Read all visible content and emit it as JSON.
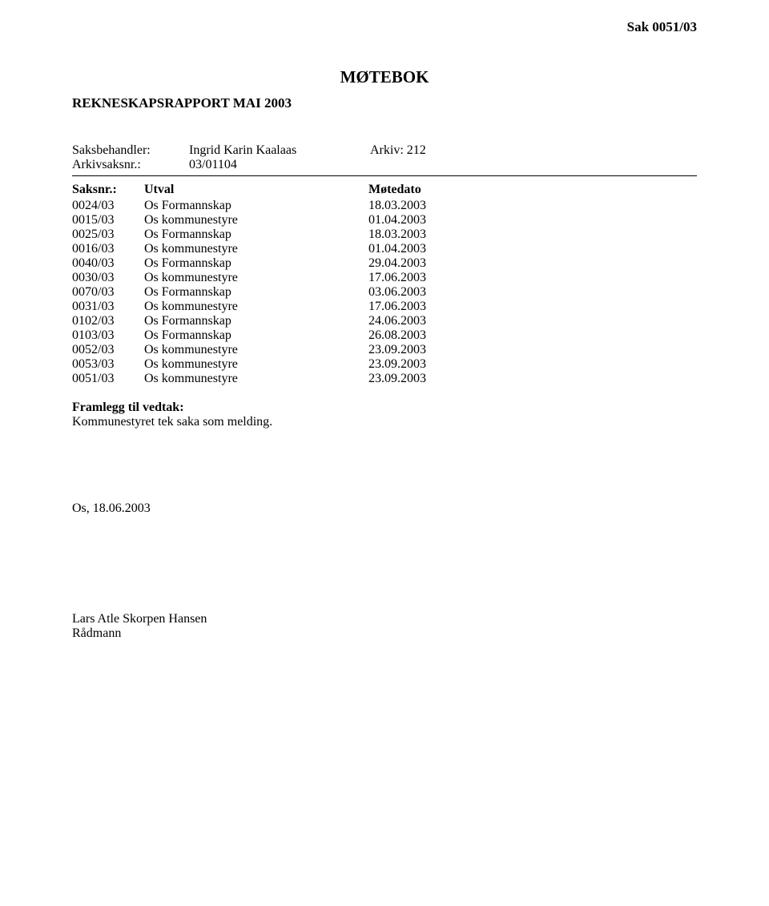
{
  "topRight": "Sak  0051/03",
  "docTitle": "MØTEBOK",
  "reportTitle": "REKNESKAPSRAPPORT MAI 2003",
  "meta": {
    "handlerLabel": "Saksbehandler:",
    "handlerName": "Ingrid Karin Kaalaas",
    "arkivLabel": "Arkiv: 212",
    "arkivsaksLabel": "Arkivsaksnr.:",
    "arkivsaksVal": "03/01104"
  },
  "listHeader": {
    "saksnr": "Saksnr.:",
    "utval": "Utval",
    "motedato": "Møtedato"
  },
  "rows": [
    {
      "nr": "0024/03",
      "utval": "Os Formannskap",
      "date": "18.03.2003"
    },
    {
      "nr": "0015/03",
      "utval": "Os kommunestyre",
      "date": "01.04.2003"
    },
    {
      "nr": "0025/03",
      "utval": "Os Formannskap",
      "date": "18.03.2003"
    },
    {
      "nr": "0016/03",
      "utval": "Os kommunestyre",
      "date": "01.04.2003"
    },
    {
      "nr": "0040/03",
      "utval": "Os Formannskap",
      "date": "29.04.2003"
    },
    {
      "nr": "0030/03",
      "utval": "Os kommunestyre",
      "date": "17.06.2003"
    },
    {
      "nr": "0070/03",
      "utval": "Os Formannskap",
      "date": "03.06.2003"
    },
    {
      "nr": "0031/03",
      "utval": "Os kommunestyre",
      "date": "17.06.2003"
    },
    {
      "nr": "0102/03",
      "utval": "Os Formannskap",
      "date": "24.06.2003"
    },
    {
      "nr": "0103/03",
      "utval": "Os Formannskap",
      "date": "26.08.2003"
    },
    {
      "nr": "0052/03",
      "utval": "Os kommunestyre",
      "date": "23.09.2003"
    },
    {
      "nr": "0053/03",
      "utval": "Os kommunestyre",
      "date": "23.09.2003"
    },
    {
      "nr": "0051/03",
      "utval": "Os kommunestyre",
      "date": "23.09.2003"
    }
  ],
  "vedtak": {
    "title": "Framlegg til vedtak:",
    "body": "Kommunestyret tek saka som melding."
  },
  "placeDate": "Os, 18.06.2003",
  "signName": "Lars Atle Skorpen Hansen",
  "signTitle": "Rådmann"
}
